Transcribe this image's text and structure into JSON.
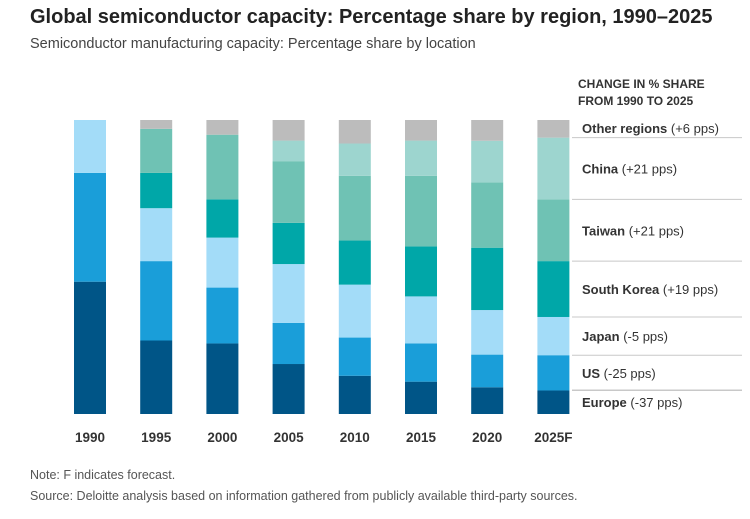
{
  "chart_data": {
    "type": "stacked-bar",
    "title": "Global semiconductor capacity: Percentage share by region, 1990–2025",
    "subtitle": "Semiconductor manufacturing capacity: Percentage share by location",
    "categories": [
      "1990",
      "1995",
      "2000",
      "2005",
      "2010",
      "2015",
      "2020",
      "2025F"
    ],
    "ylim": [
      0,
      100
    ],
    "series": [
      {
        "name": "Europe",
        "color": "#005587",
        "values": [
          45,
          25,
          24,
          17,
          13,
          11,
          9,
          8
        ]
      },
      {
        "name": "US",
        "color": "#1a9ed9",
        "values": [
          37,
          27,
          19,
          14,
          13,
          13,
          11,
          12
        ]
      },
      {
        "name": "Japan",
        "color": "#a3dcf8",
        "values": [
          18,
          18,
          17,
          20,
          18,
          16,
          15,
          13
        ]
      },
      {
        "name": "South Korea",
        "color": "#00a7a8",
        "values": [
          0,
          12,
          13,
          14,
          15,
          17,
          21,
          19
        ]
      },
      {
        "name": "Taiwan",
        "color": "#6fc2b4",
        "values": [
          0,
          15,
          22,
          21,
          22,
          24,
          22,
          21
        ]
      },
      {
        "name": "China",
        "color": "#9dd5cf",
        "values": [
          0,
          0,
          0,
          7,
          11,
          12,
          14,
          21
        ]
      },
      {
        "name": "Other regions",
        "color": "#bcbcbc",
        "values": [
          0,
          3,
          5,
          7,
          8,
          7,
          7,
          6
        ]
      }
    ],
    "legend_header": [
      "CHANGE IN % SHARE",
      "FROM 1990 TO 2025"
    ],
    "legend": [
      {
        "name": "Other regions",
        "change": "(+6 pps)"
      },
      {
        "name": "China",
        "change": "(+21 pps)"
      },
      {
        "name": "Taiwan",
        "change": "(+21 pps)"
      },
      {
        "name": "South Korea",
        "change": "(+19 pps)"
      },
      {
        "name": "Japan",
        "change": "(-5 pps)"
      },
      {
        "name": "US",
        "change": "(-25 pps)"
      },
      {
        "name": "Europe",
        "change": "(-37 pps)"
      }
    ],
    "note": "Note: F indicates forecast.",
    "source": "Source: Deloitte analysis based on information gathered from publicly available third-party sources."
  }
}
